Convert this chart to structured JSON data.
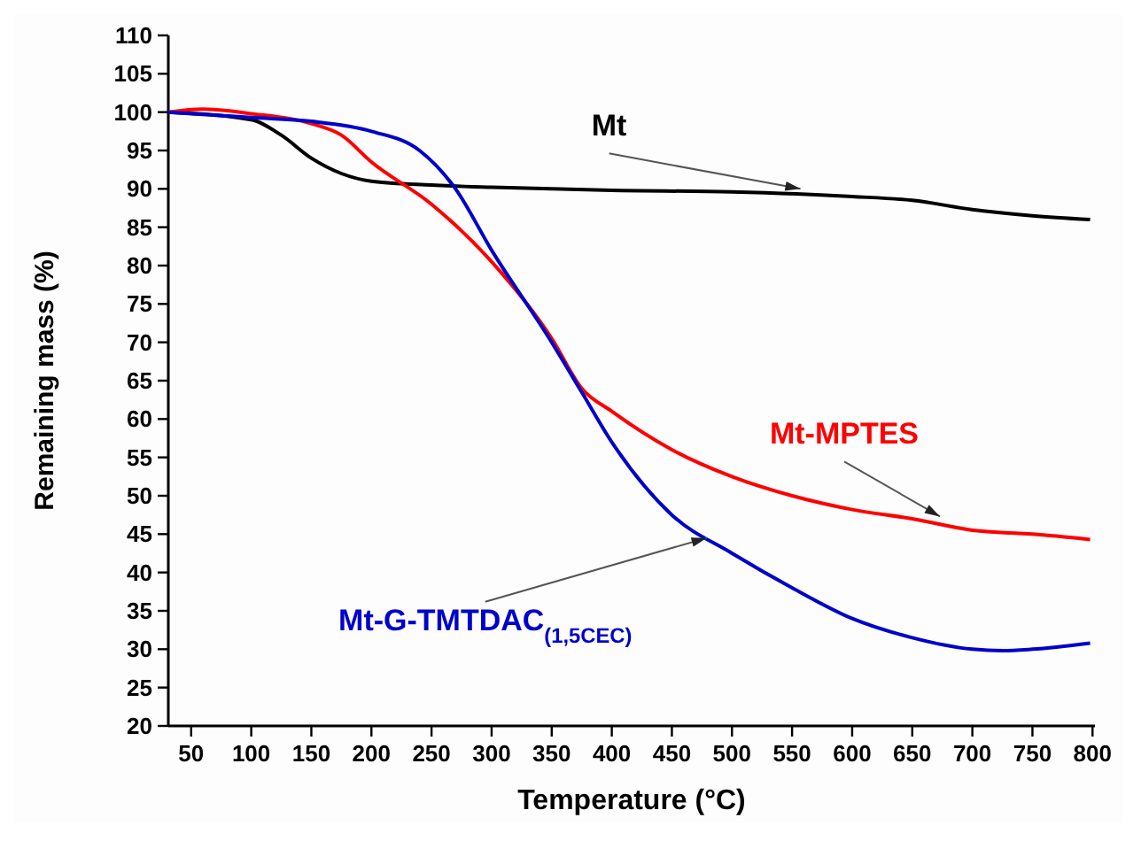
{
  "chart_data": {
    "type": "line",
    "xlabel": "Temperature (°C)",
    "ylabel": "Remaining mass (%)",
    "xlim": [
      31,
      802
    ],
    "ylim": [
      20,
      110
    ],
    "xticks": [
      50,
      100,
      150,
      200,
      250,
      300,
      350,
      400,
      450,
      500,
      550,
      600,
      650,
      700,
      750,
      800
    ],
    "yticks": [
      20,
      25,
      30,
      35,
      40,
      45,
      50,
      55,
      60,
      65,
      70,
      75,
      80,
      85,
      90,
      95,
      100,
      105,
      110
    ],
    "marker": "none",
    "line_style": "solid",
    "series": [
      {
        "color": "#000000",
        "x": [
          31,
          100,
          125,
          150,
          175,
          200,
          250,
          300,
          400,
          500,
          600,
          650,
          700,
          750,
          798
        ],
        "values": [
          100,
          99,
          97,
          94,
          92,
          91,
          90.5,
          90.2,
          89.8,
          89.6,
          89,
          88.5,
          87.3,
          86.5,
          86
        ]
      },
      {
        "color": "#ff0000",
        "x": [
          31,
          60,
          100,
          150,
          175,
          200,
          250,
          300,
          350,
          375,
          400,
          450,
          500,
          550,
          600,
          650,
          700,
          750,
          798
        ],
        "values": [
          100,
          100.4,
          99.8,
          98.5,
          97,
          93.5,
          88,
          80.5,
          70.5,
          64,
          61,
          56,
          52.5,
          50,
          48.2,
          47,
          45.5,
          45,
          44.3
        ]
      },
      {
        "color": "#0000cc",
        "x": [
          31,
          100,
          150,
          200,
          240,
          270,
          300,
          350,
          375,
          400,
          450,
          500,
          550,
          600,
          650,
          700,
          725,
          750,
          798
        ],
        "values": [
          100,
          99.3,
          98.8,
          97.5,
          95,
          90,
          82,
          70,
          63.5,
          57,
          47.5,
          42.5,
          38,
          34,
          31.5,
          30,
          29.8,
          30,
          30.8
        ]
      }
    ],
    "annotations": [
      {
        "text": "Mt",
        "x": 557,
        "y": 90
      },
      {
        "text": "Mt-MPTES",
        "x": 673,
        "y": 47.3
      },
      {
        "text": "Mt-G-TMTDAC$_{(1,5CEC)}$",
        "x": 479,
        "y": 44.5
      }
    ]
  }
}
